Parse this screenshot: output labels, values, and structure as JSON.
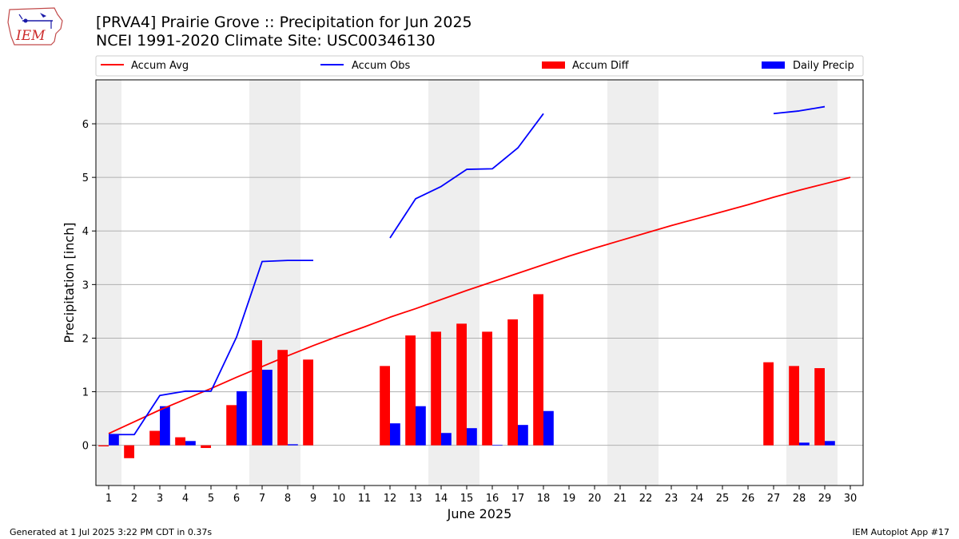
{
  "header": {
    "title_line1": "[PRVA4] Prairie Grove :: Precipitation for Jun 2025",
    "title_line2": "NCEI 1991-2020 Climate Site: USC00346130"
  },
  "logo": {
    "text": "IEM",
    "icon": "iem-iowa-map-logo"
  },
  "footer": {
    "left": "Generated at 1 Jul 2025 3:22 PM CDT in 0.37s",
    "right": "IEM Autoplot App #17"
  },
  "colors": {
    "accum_avg": "#ff0000",
    "accum_obs": "#0000ff",
    "accum_diff": "#ff0000",
    "daily_precip": "#0000ff",
    "weekend_shade": "#eeeeee",
    "grid": "#b0b0b0"
  },
  "chart_data": {
    "type": "bar",
    "xlabel": "June 2025",
    "ylabel": "Precipitation [inch]",
    "ylim": [
      -0.75,
      6.82
    ],
    "yticks": [
      0,
      1,
      2,
      3,
      4,
      5,
      6
    ],
    "xlim": [
      0.5,
      30.5
    ],
    "days": [
      1,
      2,
      3,
      4,
      5,
      6,
      7,
      8,
      9,
      10,
      11,
      12,
      13,
      14,
      15,
      16,
      17,
      18,
      19,
      20,
      21,
      22,
      23,
      24,
      25,
      26,
      27,
      28,
      29,
      30
    ],
    "grid": "horizontal",
    "legend_position": "top",
    "weekend_shading": [
      [
        0.5,
        1.5
      ],
      [
        6.5,
        8.5
      ],
      [
        13.5,
        15.5
      ],
      [
        20.5,
        22.5
      ],
      [
        27.5,
        29.5
      ]
    ],
    "legend": [
      "Accum Avg",
      "Accum Obs",
      "Accum Diff",
      "Daily Precip"
    ],
    "series": [
      {
        "name": "Accum Avg",
        "kind": "line",
        "values": [
          0.22,
          0.44,
          0.66,
          0.86,
          1.06,
          1.27,
          1.47,
          1.67,
          1.86,
          2.04,
          2.21,
          2.39,
          2.55,
          2.72,
          2.89,
          3.05,
          3.21,
          3.37,
          3.53,
          3.68,
          3.82,
          3.96,
          4.1,
          4.23,
          4.36,
          4.49,
          4.63,
          4.76,
          4.88,
          5.0
        ]
      },
      {
        "name": "Accum Obs",
        "kind": "line",
        "values": [
          0.2,
          0.2,
          0.93,
          1.01,
          1.01,
          2.02,
          3.43,
          3.45,
          3.45,
          null,
          null,
          3.87,
          4.6,
          4.83,
          5.15,
          5.16,
          5.55,
          6.19,
          null,
          null,
          null,
          null,
          null,
          null,
          null,
          null,
          6.19,
          6.24,
          6.32,
          null
        ]
      },
      {
        "name": "Accum Diff",
        "kind": "bar",
        "values": [
          -0.02,
          -0.24,
          0.27,
          0.15,
          -0.05,
          0.75,
          1.96,
          1.78,
          1.6,
          null,
          null,
          1.48,
          2.05,
          2.12,
          2.27,
          2.12,
          2.35,
          2.82,
          null,
          null,
          null,
          null,
          null,
          null,
          null,
          null,
          1.55,
          1.48,
          1.44,
          null
        ]
      },
      {
        "name": "Daily Precip",
        "kind": "bar",
        "values": [
          0.2,
          0.0,
          0.73,
          0.08,
          0.0,
          1.01,
          1.41,
          0.02,
          0.0,
          null,
          null,
          0.41,
          0.73,
          0.23,
          0.32,
          0.01,
          0.38,
          0.64,
          null,
          null,
          null,
          null,
          null,
          null,
          null,
          null,
          0.0,
          0.05,
          0.08,
          null
        ]
      }
    ]
  }
}
